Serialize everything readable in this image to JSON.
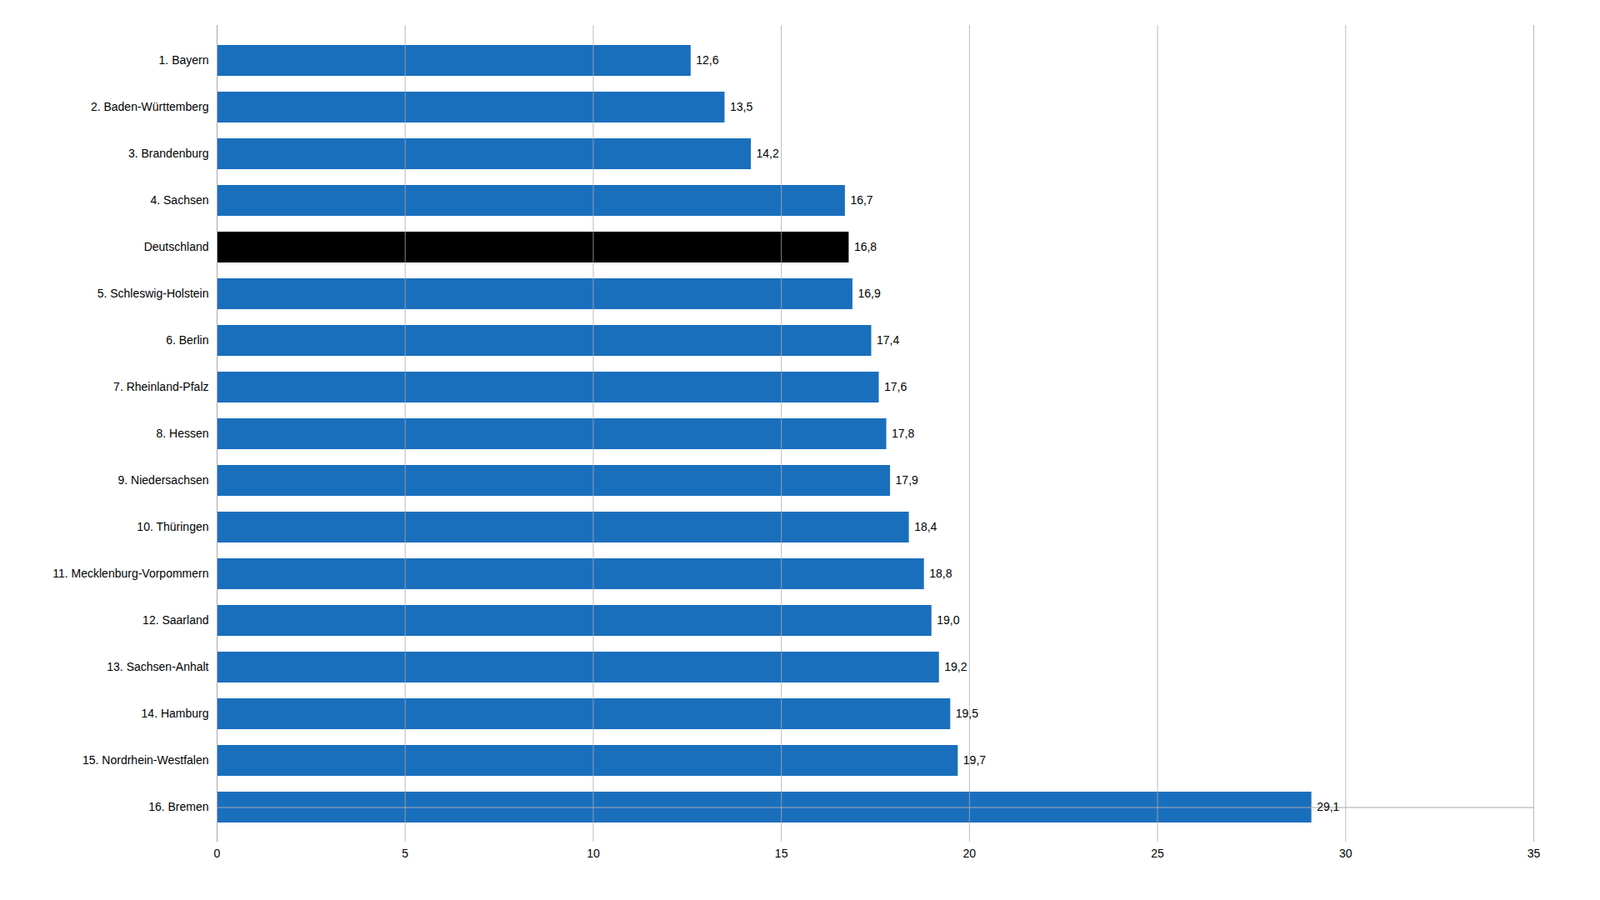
{
  "chart_data": {
    "type": "bar",
    "orientation": "horizontal",
    "categories": [
      "16. Bremen",
      "15. Nordrhein-Westfalen",
      "14. Hamburg",
      "13. Sachsen-Anhalt",
      "12. Saarland",
      "11. Mecklenburg-Vorpommern",
      "10. Thüringen",
      "9. Niedersachsen",
      "8. Hessen",
      "7. Rheinland-Pfalz",
      "6. Berlin",
      "5. Schleswig-Holstein",
      "Deutschland",
      "4. Sachsen",
      "3. Brandenburg",
      "2. Baden-Württemberg",
      "1. Bayern"
    ],
    "values": [
      29.1,
      19.7,
      19.5,
      19.2,
      19.0,
      18.8,
      18.4,
      17.9,
      17.8,
      17.6,
      17.4,
      16.9,
      16.8,
      16.7,
      14.2,
      13.5,
      12.6
    ],
    "value_labels": [
      "29,1",
      "19,7",
      "19,5",
      "19,2",
      "19,0",
      "18,8",
      "18,4",
      "17,9",
      "17,8",
      "17,6",
      "17,4",
      "16,9",
      "16,8",
      "16,7",
      "14,2",
      "13,5",
      "12,6"
    ],
    "colors": [
      "#1a6fbd",
      "#1a6fbd",
      "#1a6fbd",
      "#1a6fbd",
      "#1a6fbd",
      "#1a6fbd",
      "#1a6fbd",
      "#1a6fbd",
      "#1a6fbd",
      "#1a6fbd",
      "#1a6fbd",
      "#1a6fbd",
      "#000000",
      "#1a6fbd",
      "#1a6fbd",
      "#1a6fbd",
      "#1a6fbd"
    ],
    "xlim": [
      0,
      35
    ],
    "xticks": [
      0,
      5,
      10,
      15,
      20,
      25,
      30,
      35
    ],
    "grid": true,
    "data_labels": true
  }
}
